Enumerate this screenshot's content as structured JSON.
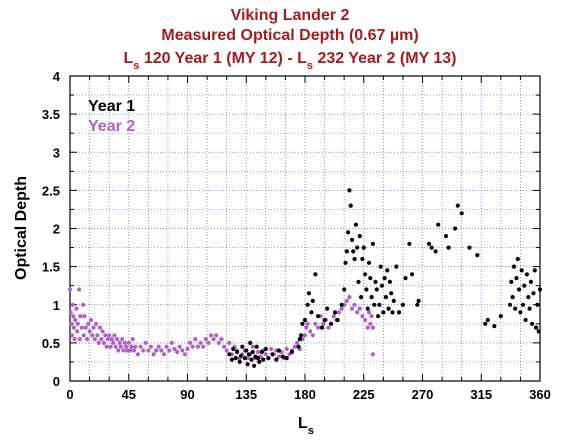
{
  "colors": {
    "title": "#a61c1c",
    "year1": "#000000",
    "year2": "#b05fc9",
    "grid": "#5d6fd6"
  },
  "chart_data": {
    "type": "scatter",
    "title_line1": "Viking Lander 2",
    "title_line2": "Measured Optical Depth (0.67 µm)",
    "title_line3": {
      "p1": "L",
      "s1": "s",
      "p2": " 120 Year 1 (MY 12) - L",
      "s2": "s",
      "p3": " 232 Year 2 (MY 13)"
    },
    "xlabel": {
      "main": "L",
      "sub": "s"
    },
    "ylabel": "Optical Depth",
    "xlim": [
      0,
      360
    ],
    "ylim": [
      0,
      4
    ],
    "xticks": [
      "0",
      "45",
      "90",
      "135",
      "180",
      "225",
      "270",
      "315",
      "360"
    ],
    "yticks": [
      "0",
      "0.5",
      "1",
      "1.5",
      "2",
      "2.5",
      "3",
      "3.5",
      "4"
    ],
    "grid": true,
    "legend_position": "top-left",
    "series": [
      {
        "name": "Year 1",
        "color": "#000000",
        "points": [
          [
            122,
            0.35
          ],
          [
            124,
            0.28
          ],
          [
            125,
            0.42
          ],
          [
            127,
            0.3
          ],
          [
            128,
            0.38
          ],
          [
            130,
            0.25
          ],
          [
            131,
            0.33
          ],
          [
            132,
            0.45
          ],
          [
            134,
            0.3
          ],
          [
            135,
            0.4
          ],
          [
            136,
            0.22
          ],
          [
            137,
            0.35
          ],
          [
            138,
            0.5
          ],
          [
            139,
            0.28
          ],
          [
            140,
            0.38
          ],
          [
            141,
            0.2
          ],
          [
            142,
            0.32
          ],
          [
            143,
            0.45
          ],
          [
            144,
            0.3
          ],
          [
            145,
            0.25
          ],
          [
            147,
            0.38
          ],
          [
            148,
            0.28
          ],
          [
            150,
            0.42
          ],
          [
            152,
            0.3
          ],
          [
            155,
            0.35
          ],
          [
            158,
            0.28
          ],
          [
            160,
            0.4
          ],
          [
            163,
            0.32
          ],
          [
            166,
            0.3
          ],
          [
            170,
            0.38
          ],
          [
            175,
            0.45
          ],
          [
            176,
            0.55
          ],
          [
            177,
            0.6
          ],
          [
            178,
            0.75
          ],
          [
            180,
            0.8
          ],
          [
            182,
            1.0
          ],
          [
            183,
            1.15
          ],
          [
            185,
            0.9
          ],
          [
            186,
            1.05
          ],
          [
            188,
            1.4
          ],
          [
            190,
            0.85
          ],
          [
            193,
            0.7
          ],
          [
            195,
            0.8
          ],
          [
            197,
            0.95
          ],
          [
            200,
            0.75
          ],
          [
            203,
            0.9
          ],
          [
            205,
            0.8
          ],
          [
            208,
            1.0
          ],
          [
            210,
            1.2
          ],
          [
            211,
            1.55
          ],
          [
            212,
            1.7
          ],
          [
            213,
            1.95
          ],
          [
            214,
            2.5
          ],
          [
            215,
            2.3
          ],
          [
            216,
            1.85
          ],
          [
            217,
            1.7
          ],
          [
            218,
            1.6
          ],
          [
            219,
            2.05
          ],
          [
            220,
            1.75
          ],
          [
            221,
            1.3
          ],
          [
            222,
            1.9
          ],
          [
            223,
            1.1
          ],
          [
            224,
            1.6
          ],
          [
            225,
            1.75
          ],
          [
            226,
            1.4
          ],
          [
            227,
            1.2
          ],
          [
            228,
            0.95
          ],
          [
            229,
            1.55
          ],
          [
            230,
            1.35
          ],
          [
            231,
            1.1
          ],
          [
            232,
            1.8
          ],
          [
            233,
            1.0
          ],
          [
            234,
            1.3
          ],
          [
            235,
            1.2
          ],
          [
            236,
            0.85
          ],
          [
            237,
            1.0
          ],
          [
            238,
            1.5
          ],
          [
            239,
            1.25
          ],
          [
            240,
            0.9
          ],
          [
            241,
            1.35
          ],
          [
            242,
            1.1
          ],
          [
            243,
            1.45
          ],
          [
            244,
            0.95
          ],
          [
            245,
            1.3
          ],
          [
            246,
            1.15
          ],
          [
            247,
            0.9
          ],
          [
            248,
            1.05
          ],
          [
            250,
            1.5
          ],
          [
            252,
            0.9
          ],
          [
            255,
            1.0
          ],
          [
            257,
            1.35
          ],
          [
            260,
            1.8
          ],
          [
            262,
            1.4
          ],
          [
            266,
            1.0
          ],
          [
            267,
            1.05
          ],
          [
            275,
            1.8
          ],
          [
            277,
            1.75
          ],
          [
            280,
            1.7
          ],
          [
            282,
            2.05
          ],
          [
            288,
            1.9
          ],
          [
            290,
            1.75
          ],
          [
            295,
            2.0
          ],
          [
            297,
            2.3
          ],
          [
            300,
            2.2
          ],
          [
            306,
            1.75
          ],
          [
            312,
            1.65
          ],
          [
            318,
            0.75
          ],
          [
            320,
            0.8
          ],
          [
            325,
            0.72
          ],
          [
            330,
            0.85
          ],
          [
            337,
            1.0
          ],
          [
            338,
            1.3
          ],
          [
            339,
            1.1
          ],
          [
            340,
            1.5
          ],
          [
            341,
            0.95
          ],
          [
            342,
            1.35
          ],
          [
            343,
            1.6
          ],
          [
            344,
            1.2
          ],
          [
            345,
            0.9
          ],
          [
            346,
            1.45
          ],
          [
            347,
            1.0
          ],
          [
            348,
            1.25
          ],
          [
            349,
            0.8
          ],
          [
            350,
            1.4
          ],
          [
            351,
            1.1
          ],
          [
            352,
            0.95
          ],
          [
            353,
            1.3
          ],
          [
            354,
            0.75
          ],
          [
            355,
            1.15
          ],
          [
            356,
            1.45
          ],
          [
            357,
            0.7
          ],
          [
            358,
            1.0
          ],
          [
            359,
            0.65
          ],
          [
            360,
            1.2
          ]
        ]
      },
      {
        "name": "Year 2",
        "color": "#b05fc9",
        "points": [
          [
            0,
            1.2
          ],
          [
            0.5,
            0.9
          ],
          [
            1,
            0.75
          ],
          [
            1.5,
            0.6
          ],
          [
            2,
            1.0
          ],
          [
            2.5,
            0.85
          ],
          [
            3,
            0.7
          ],
          [
            3.5,
            0.55
          ],
          [
            4,
            0.8
          ],
          [
            5,
            0.95
          ],
          [
            5.5,
            0.65
          ],
          [
            6,
            0.75
          ],
          [
            7,
            1.2
          ],
          [
            7.5,
            0.55
          ],
          [
            8,
            0.85
          ],
          [
            9,
            0.7
          ],
          [
            10,
            1.0
          ],
          [
            10.5,
            0.6
          ],
          [
            11,
            0.85
          ],
          [
            12,
            0.7
          ],
          [
            13,
            0.55
          ],
          [
            14,
            0.75
          ],
          [
            15,
            0.65
          ],
          [
            16,
            0.8
          ],
          [
            17,
            0.6
          ],
          [
            18,
            0.7
          ],
          [
            19,
            0.55
          ],
          [
            20,
            0.75
          ],
          [
            21,
            0.6
          ],
          [
            22,
            0.5
          ],
          [
            23,
            0.7
          ],
          [
            24,
            0.55
          ],
          [
            25,
            0.65
          ],
          [
            26,
            0.5
          ],
          [
            27,
            0.6
          ],
          [
            28,
            0.45
          ],
          [
            29,
            0.55
          ],
          [
            30,
            0.6
          ],
          [
            31,
            0.45
          ],
          [
            32,
            0.55
          ],
          [
            33,
            0.5
          ],
          [
            34,
            0.6
          ],
          [
            35,
            0.45
          ],
          [
            36,
            0.55
          ],
          [
            37,
            0.4
          ],
          [
            38,
            0.5
          ],
          [
            39,
            0.45
          ],
          [
            40,
            0.55
          ],
          [
            41,
            0.4
          ],
          [
            42,
            0.5
          ],
          [
            43,
            0.45
          ],
          [
            44,
            0.4
          ],
          [
            45,
            0.5
          ],
          [
            46,
            0.4
          ],
          [
            47,
            0.45
          ],
          [
            48,
            0.55
          ],
          [
            49,
            0.4
          ],
          [
            50,
            0.45
          ],
          [
            52,
            0.35
          ],
          [
            54,
            0.45
          ],
          [
            56,
            0.4
          ],
          [
            58,
            0.5
          ],
          [
            60,
            0.4
          ],
          [
            62,
            0.45
          ],
          [
            64,
            0.35
          ],
          [
            66,
            0.4
          ],
          [
            68,
            0.45
          ],
          [
            70,
            0.4
          ],
          [
            72,
            0.35
          ],
          [
            74,
            0.45
          ],
          [
            76,
            0.4
          ],
          [
            78,
            0.5
          ],
          [
            80,
            0.42
          ],
          [
            82,
            0.38
          ],
          [
            84,
            0.45
          ],
          [
            86,
            0.4
          ],
          [
            88,
            0.35
          ],
          [
            90,
            0.42
          ],
          [
            92,
            0.5
          ],
          [
            94,
            0.45
          ],
          [
            96,
            0.55
          ],
          [
            98,
            0.45
          ],
          [
            100,
            0.5
          ],
          [
            102,
            0.45
          ],
          [
            104,
            0.55
          ],
          [
            106,
            0.5
          ],
          [
            108,
            0.6
          ],
          [
            110,
            0.55
          ],
          [
            112,
            0.6
          ],
          [
            114,
            0.5
          ],
          [
            116,
            0.55
          ],
          [
            118,
            0.45
          ],
          [
            120,
            0.4
          ],
          [
            122,
            0.5
          ],
          [
            124,
            0.35
          ],
          [
            126,
            0.45
          ],
          [
            128,
            0.4
          ],
          [
            130,
            0.3
          ],
          [
            132,
            0.35
          ],
          [
            134,
            0.4
          ],
          [
            136,
            0.3
          ],
          [
            138,
            0.35
          ],
          [
            140,
            0.45
          ],
          [
            142,
            0.3
          ],
          [
            144,
            0.38
          ],
          [
            146,
            0.32
          ],
          [
            148,
            0.4
          ],
          [
            150,
            0.35
          ],
          [
            152,
            0.3
          ],
          [
            154,
            0.42
          ],
          [
            156,
            0.35
          ],
          [
            158,
            0.4
          ],
          [
            160,
            0.32
          ],
          [
            162,
            0.38
          ],
          [
            164,
            0.3
          ],
          [
            166,
            0.42
          ],
          [
            168,
            0.35
          ],
          [
            170,
            0.4
          ],
          [
            172,
            0.45
          ],
          [
            174,
            0.5
          ],
          [
            176,
            0.42
          ],
          [
            178,
            0.55
          ],
          [
            180,
            0.6
          ],
          [
            181,
            0.7
          ],
          [
            182,
            0.75
          ],
          [
            184,
            0.65
          ],
          [
            186,
            0.6
          ],
          [
            188,
            0.75
          ],
          [
            190,
            0.7
          ],
          [
            192,
            0.85
          ],
          [
            194,
            0.75
          ],
          [
            196,
            0.8
          ],
          [
            198,
            0.7
          ],
          [
            200,
            0.75
          ],
          [
            202,
            0.85
          ],
          [
            204,
            0.8
          ],
          [
            206,
            0.9
          ],
          [
            208,
            0.95
          ],
          [
            210,
            1.0
          ],
          [
            212,
            1.05
          ],
          [
            214,
            1.1
          ],
          [
            216,
            0.95
          ],
          [
            218,
            1.0
          ],
          [
            220,
            0.9
          ],
          [
            222,
            0.95
          ],
          [
            224,
            0.85
          ],
          [
            226,
            0.8
          ],
          [
            228,
            0.7
          ],
          [
            229,
            0.9
          ],
          [
            230,
            0.75
          ],
          [
            231,
            0.85
          ],
          [
            232,
            0.7
          ],
          [
            232,
            0.35
          ]
        ]
      }
    ]
  }
}
